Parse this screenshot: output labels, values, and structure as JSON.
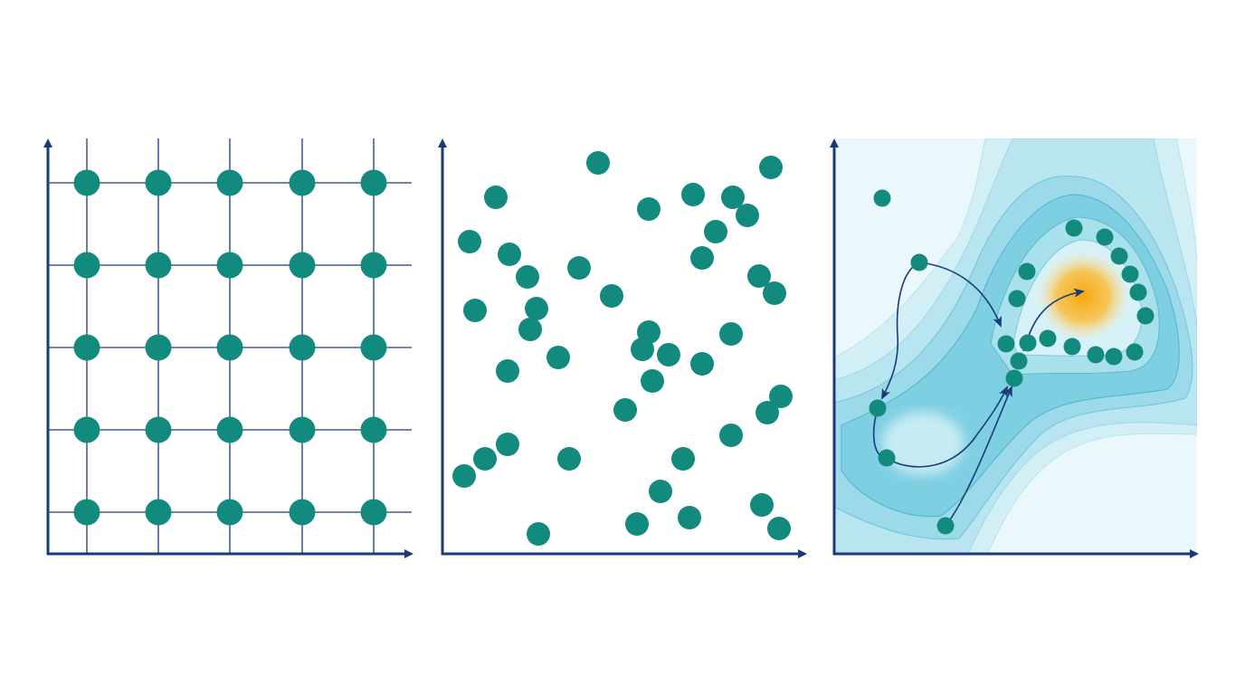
{
  "colors": {
    "axis": "#1b3a7a",
    "grid_line": "#1b3a7a",
    "point": "#128a7e",
    "surface_light": "#e6f6fa",
    "surface_mid": "#9fdbe8",
    "surface_dark": "#4cbfd6",
    "optimum": "#f7a90f",
    "arrow": "#1b3a7a"
  },
  "panels": [
    {
      "id": "grid",
      "point_count": 25
    },
    {
      "id": "random",
      "point_count": 42
    },
    {
      "id": "guided",
      "point_count": 22
    }
  ]
}
